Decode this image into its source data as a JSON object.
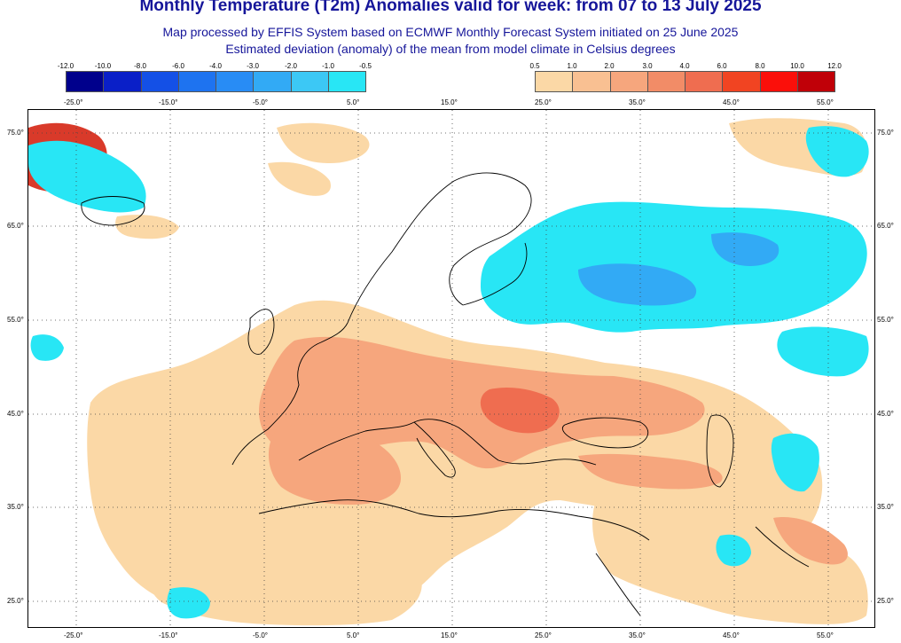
{
  "header": {
    "title": "Monthly Temperature (T2m) Anomalies valid for week: from 07 to 13 July 2025",
    "subtitle_line1": "Map processed by EFFIS System based on ECMWF Monthly Forecast System initiated on 25 June 2025",
    "subtitle_line2": "Estimated deviation (anomaly) of the mean from model climate in Celsius degrees"
  },
  "legend_cold": {
    "labels": [
      "-12.0",
      "-10.0",
      "-8.0",
      "-6.0",
      "-4.0",
      "-3.0",
      "-2.0",
      "-1.0",
      "-0.5"
    ],
    "colors": [
      "#00008c",
      "#0a1fc8",
      "#1450e6",
      "#1e73f0",
      "#288cf5",
      "#32aaf5",
      "#3cc8f5",
      "#28e6f5"
    ]
  },
  "legend_warm": {
    "labels": [
      "0.5",
      "1.0",
      "2.0",
      "3.0",
      "4.0",
      "6.0",
      "8.0",
      "10.0",
      "12.0"
    ],
    "colors": [
      "#fbd8a6",
      "#f9c092",
      "#f6a67d",
      "#f28c67",
      "#ef6d50",
      "#f14422",
      "#fb0f0a",
      "#c00008"
    ]
  },
  "map": {
    "lon_ticks": [
      "-25.0°",
      "-15.0°",
      "-5.0°",
      "5.0°",
      "15.0°",
      "25.0°",
      "35.0°",
      "45.0°",
      "55.0°"
    ],
    "lat_ticks": [
      "75.0°",
      "65.0°",
      "55.0°",
      "45.0°",
      "35.0°",
      "25.0°"
    ],
    "colors": {
      "warm_light": "#fbd8a6",
      "warm_mid": "#f6a67d",
      "warm_strong": "#ef6d50",
      "hot": "#d93a2a",
      "cold": "#28e6f5",
      "cold_mid": "#32aaf5"
    }
  }
}
